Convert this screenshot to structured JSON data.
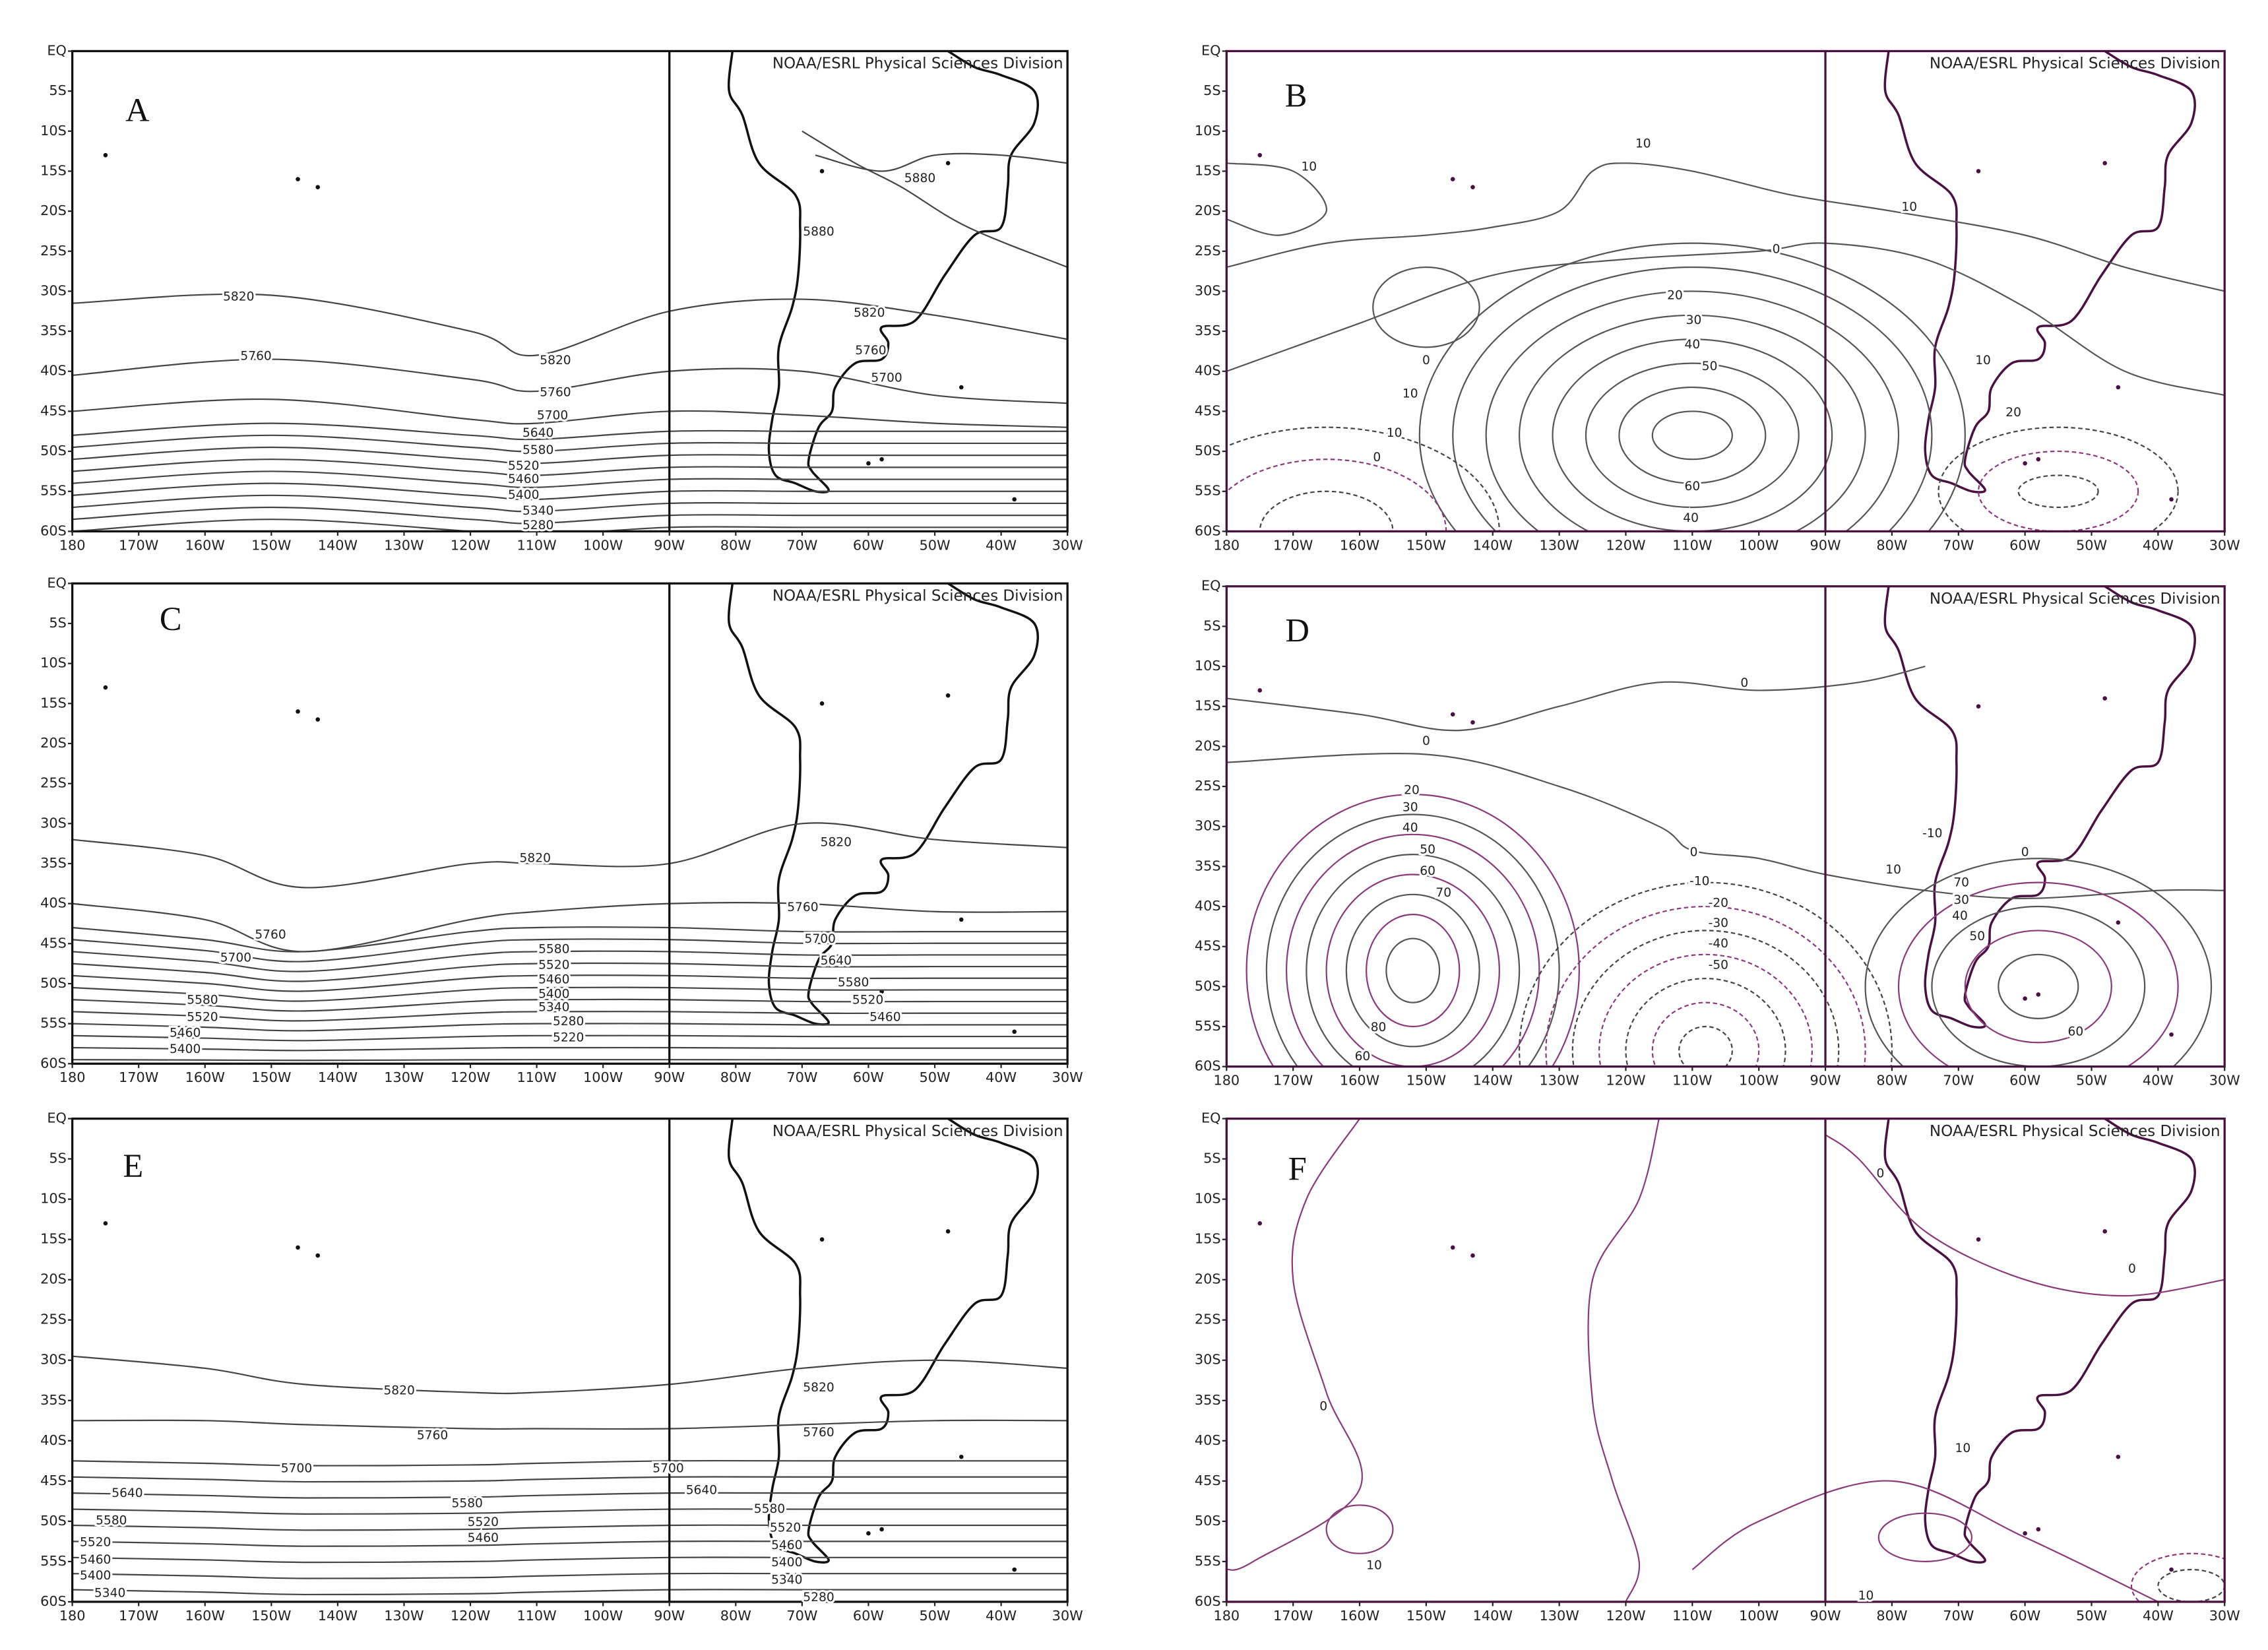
{
  "credit": "NOAA/ESRL Physical Sciences Division",
  "axes": {
    "lat_ticks": [
      "EQ",
      "5S",
      "10S",
      "15S",
      "20S",
      "25S",
      "30S",
      "35S",
      "40S",
      "45S",
      "50S",
      "55S",
      "60S"
    ],
    "lon_ticks": [
      "180",
      "170W",
      "160W",
      "150W",
      "140W",
      "130W",
      "120W",
      "110W",
      "100W",
      "90W",
      "80W",
      "70W",
      "60W",
      "50W",
      "40W",
      "30W"
    ]
  },
  "panels": [
    {
      "letter": "A",
      "contour_labels": [
        5880,
        5880,
        5820,
        5820,
        5820,
        5760,
        5760,
        5760,
        5700,
        5700,
        5640,
        5580,
        5520,
        5460,
        5400,
        5340,
        5280
      ]
    },
    {
      "letter": "B",
      "contour_labels": [
        10,
        10,
        10,
        0,
        20,
        30,
        40,
        50,
        0,
        10,
        10,
        0,
        60,
        40,
        10,
        20
      ]
    },
    {
      "letter": "C",
      "contour_labels": [
        5820,
        5820,
        5760,
        5760,
        5700,
        5700,
        5640,
        5580,
        5520,
        5460,
        5400,
        5340,
        5280,
        5220,
        5580,
        5520,
        5460,
        5580,
        5520,
        5460,
        5400
      ]
    },
    {
      "letter": "D",
      "contour_labels": [
        0,
        0,
        20,
        30,
        40,
        50,
        60,
        70,
        80,
        60,
        0,
        -10,
        -20,
        -30,
        -40,
        -50,
        -10,
        0,
        10,
        70,
        30,
        40,
        50,
        60
      ]
    },
    {
      "letter": "E",
      "contour_labels": [
        5820,
        5820,
        5760,
        5760,
        5700,
        5700,
        5640,
        5640,
        5580,
        5580,
        5580,
        5520,
        5520,
        5520,
        5460,
        5460,
        5460,
        5400,
        5400,
        5340,
        5340,
        5280
      ]
    },
    {
      "letter": "F",
      "contour_labels": [
        0,
        0,
        0,
        10,
        10,
        10
      ]
    }
  ]
}
